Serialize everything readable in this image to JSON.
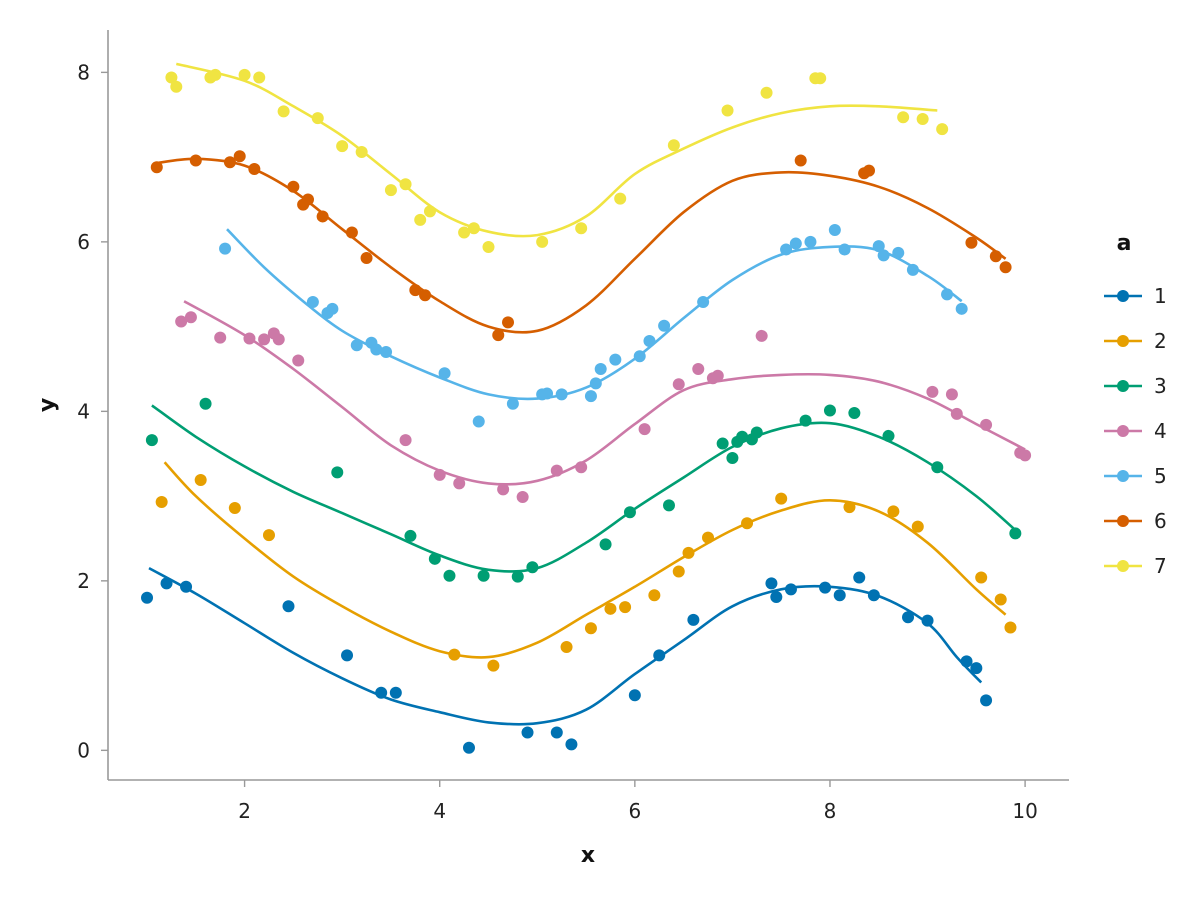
{
  "chart_data": {
    "type": "scatter",
    "title": "",
    "xlabel": "x",
    "ylabel": "y",
    "xlim": [
      0.6,
      10.45
    ],
    "ylim": [
      -0.35,
      8.5
    ],
    "xticks": [
      2,
      4,
      6,
      8,
      10
    ],
    "yticks": [
      0,
      2,
      4,
      6,
      8
    ],
    "grid": false,
    "legend_title": "a",
    "legend_position": "right",
    "series": [
      {
        "name": "1",
        "color": "#0072B2",
        "points": [
          [
            1.0,
            1.8
          ],
          [
            1.2,
            1.97
          ],
          [
            1.4,
            1.93
          ],
          [
            2.45,
            1.7
          ],
          [
            3.05,
            1.12
          ],
          [
            3.4,
            0.68
          ],
          [
            3.55,
            0.68
          ],
          [
            4.3,
            0.03
          ],
          [
            4.9,
            0.21
          ],
          [
            5.2,
            0.21
          ],
          [
            5.35,
            0.07
          ],
          [
            6.0,
            0.65
          ],
          [
            6.25,
            1.12
          ],
          [
            6.6,
            1.54
          ],
          [
            7.4,
            1.97
          ],
          [
            7.45,
            1.81
          ],
          [
            7.6,
            1.9
          ],
          [
            7.95,
            1.92
          ],
          [
            8.1,
            1.83
          ],
          [
            8.3,
            2.04
          ],
          [
            8.45,
            1.83
          ],
          [
            8.8,
            1.57
          ],
          [
            9.0,
            1.53
          ],
          [
            9.4,
            1.05
          ],
          [
            9.5,
            0.97
          ],
          [
            9.6,
            0.59
          ]
        ],
        "smooth": [
          [
            1.02,
            2.15
          ],
          [
            1.5,
            1.85
          ],
          [
            2.0,
            1.5
          ],
          [
            2.5,
            1.15
          ],
          [
            3.0,
            0.85
          ],
          [
            3.5,
            0.6
          ],
          [
            4.0,
            0.45
          ],
          [
            4.5,
            0.33
          ],
          [
            5.0,
            0.32
          ],
          [
            5.5,
            0.48
          ],
          [
            6.0,
            0.9
          ],
          [
            6.5,
            1.3
          ],
          [
            7.0,
            1.7
          ],
          [
            7.5,
            1.9
          ],
          [
            8.0,
            1.93
          ],
          [
            8.5,
            1.82
          ],
          [
            9.0,
            1.5
          ],
          [
            9.3,
            1.1
          ],
          [
            9.55,
            0.8
          ]
        ]
      },
      {
        "name": "2",
        "color": "#E69F00",
        "points": [
          [
            1.15,
            2.93
          ],
          [
            1.55,
            3.19
          ],
          [
            1.9,
            2.86
          ],
          [
            2.25,
            2.54
          ],
          [
            4.15,
            1.13
          ],
          [
            4.55,
            1.0
          ],
          [
            5.3,
            1.22
          ],
          [
            5.55,
            1.44
          ],
          [
            5.75,
            1.67
          ],
          [
            5.9,
            1.69
          ],
          [
            6.2,
            1.83
          ],
          [
            6.45,
            2.11
          ],
          [
            6.55,
            2.33
          ],
          [
            6.75,
            2.51
          ],
          [
            7.15,
            2.68
          ],
          [
            7.5,
            2.97
          ],
          [
            8.2,
            2.87
          ],
          [
            8.65,
            2.82
          ],
          [
            8.9,
            2.64
          ],
          [
            9.55,
            2.04
          ],
          [
            9.75,
            1.78
          ],
          [
            9.85,
            1.45
          ]
        ],
        "smooth": [
          [
            1.18,
            3.4
          ],
          [
            1.5,
            3.0
          ],
          [
            2.0,
            2.5
          ],
          [
            2.5,
            2.05
          ],
          [
            3.0,
            1.7
          ],
          [
            3.5,
            1.4
          ],
          [
            4.0,
            1.17
          ],
          [
            4.5,
            1.1
          ],
          [
            5.0,
            1.27
          ],
          [
            5.5,
            1.6
          ],
          [
            6.0,
            1.93
          ],
          [
            6.5,
            2.28
          ],
          [
            7.0,
            2.6
          ],
          [
            7.5,
            2.83
          ],
          [
            8.0,
            2.95
          ],
          [
            8.5,
            2.82
          ],
          [
            9.0,
            2.45
          ],
          [
            9.5,
            1.9
          ],
          [
            9.8,
            1.6
          ]
        ]
      },
      {
        "name": "3",
        "color": "#009E73",
        "points": [
          [
            1.05,
            3.66
          ],
          [
            1.6,
            4.09
          ],
          [
            2.95,
            3.28
          ],
          [
            3.7,
            2.53
          ],
          [
            3.95,
            2.26
          ],
          [
            4.1,
            2.06
          ],
          [
            4.45,
            2.06
          ],
          [
            4.8,
            2.05
          ],
          [
            4.95,
            2.16
          ],
          [
            5.7,
            2.43
          ],
          [
            5.95,
            2.81
          ],
          [
            6.35,
            2.89
          ],
          [
            6.9,
            3.62
          ],
          [
            7.0,
            3.45
          ],
          [
            7.05,
            3.64
          ],
          [
            7.1,
            3.7
          ],
          [
            7.2,
            3.67
          ],
          [
            7.25,
            3.75
          ],
          [
            7.75,
            3.89
          ],
          [
            8.0,
            4.01
          ],
          [
            8.25,
            3.98
          ],
          [
            8.6,
            3.71
          ],
          [
            9.1,
            3.34
          ],
          [
            9.9,
            2.56
          ]
        ],
        "smooth": [
          [
            1.05,
            4.07
          ],
          [
            1.5,
            3.7
          ],
          [
            2.0,
            3.35
          ],
          [
            2.5,
            3.05
          ],
          [
            3.0,
            2.8
          ],
          [
            3.5,
            2.55
          ],
          [
            4.0,
            2.3
          ],
          [
            4.5,
            2.13
          ],
          [
            5.0,
            2.15
          ],
          [
            5.5,
            2.45
          ],
          [
            6.0,
            2.85
          ],
          [
            6.5,
            3.22
          ],
          [
            7.0,
            3.58
          ],
          [
            7.5,
            3.8
          ],
          [
            8.0,
            3.86
          ],
          [
            8.5,
            3.7
          ],
          [
            9.0,
            3.4
          ],
          [
            9.5,
            3.0
          ],
          [
            9.9,
            2.6
          ]
        ]
      },
      {
        "name": "4",
        "color": "#CC79A7",
        "points": [
          [
            1.35,
            5.06
          ],
          [
            1.45,
            5.11
          ],
          [
            1.75,
            4.87
          ],
          [
            2.05,
            4.86
          ],
          [
            2.2,
            4.85
          ],
          [
            2.3,
            4.92
          ],
          [
            2.35,
            4.85
          ],
          [
            2.55,
            4.6
          ],
          [
            3.65,
            3.66
          ],
          [
            4.0,
            3.25
          ],
          [
            4.2,
            3.15
          ],
          [
            4.65,
            3.08
          ],
          [
            4.85,
            2.99
          ],
          [
            5.2,
            3.3
          ],
          [
            5.45,
            3.34
          ],
          [
            6.1,
            3.79
          ],
          [
            6.45,
            4.32
          ],
          [
            6.65,
            4.5
          ],
          [
            6.8,
            4.39
          ],
          [
            6.85,
            4.42
          ],
          [
            7.3,
            4.89
          ],
          [
            9.05,
            4.23
          ],
          [
            9.25,
            4.2
          ],
          [
            9.3,
            3.97
          ],
          [
            9.6,
            3.84
          ],
          [
            9.95,
            3.51
          ],
          [
            10.0,
            3.48
          ]
        ],
        "smooth": [
          [
            1.38,
            5.3
          ],
          [
            2.0,
            4.9
          ],
          [
            2.5,
            4.5
          ],
          [
            3.0,
            4.05
          ],
          [
            3.5,
            3.6
          ],
          [
            4.0,
            3.3
          ],
          [
            4.5,
            3.15
          ],
          [
            5.0,
            3.18
          ],
          [
            5.5,
            3.42
          ],
          [
            6.0,
            3.85
          ],
          [
            6.5,
            4.25
          ],
          [
            7.0,
            4.38
          ],
          [
            7.5,
            4.43
          ],
          [
            8.0,
            4.43
          ],
          [
            8.5,
            4.35
          ],
          [
            9.0,
            4.15
          ],
          [
            9.5,
            3.85
          ],
          [
            10.0,
            3.55
          ]
        ]
      },
      {
        "name": "5",
        "color": "#56B4E9",
        "points": [
          [
            1.8,
            5.92
          ],
          [
            2.7,
            5.29
          ],
          [
            2.85,
            5.16
          ],
          [
            2.9,
            5.21
          ],
          [
            3.15,
            4.78
          ],
          [
            3.3,
            4.81
          ],
          [
            3.35,
            4.73
          ],
          [
            3.45,
            4.7
          ],
          [
            4.05,
            4.45
          ],
          [
            4.4,
            3.88
          ],
          [
            4.75,
            4.09
          ],
          [
            5.05,
            4.2
          ],
          [
            5.1,
            4.21
          ],
          [
            5.25,
            4.2
          ],
          [
            5.55,
            4.18
          ],
          [
            5.6,
            4.33
          ],
          [
            5.65,
            4.5
          ],
          [
            5.8,
            4.61
          ],
          [
            6.05,
            4.65
          ],
          [
            6.15,
            4.83
          ],
          [
            6.3,
            5.01
          ],
          [
            6.7,
            5.29
          ],
          [
            7.55,
            5.91
          ],
          [
            7.65,
            5.98
          ],
          [
            7.8,
            6.0
          ],
          [
            8.05,
            6.14
          ],
          [
            8.15,
            5.91
          ],
          [
            8.5,
            5.95
          ],
          [
            8.55,
            5.84
          ],
          [
            8.7,
            5.87
          ],
          [
            8.85,
            5.67
          ],
          [
            9.2,
            5.38
          ],
          [
            9.35,
            5.21
          ]
        ],
        "smooth": [
          [
            1.82,
            6.15
          ],
          [
            2.2,
            5.7
          ],
          [
            2.6,
            5.3
          ],
          [
            3.0,
            4.95
          ],
          [
            3.5,
            4.65
          ],
          [
            4.0,
            4.4
          ],
          [
            4.5,
            4.2
          ],
          [
            5.0,
            4.15
          ],
          [
            5.5,
            4.28
          ],
          [
            6.0,
            4.62
          ],
          [
            6.5,
            5.1
          ],
          [
            7.0,
            5.55
          ],
          [
            7.5,
            5.85
          ],
          [
            8.0,
            5.94
          ],
          [
            8.5,
            5.9
          ],
          [
            9.0,
            5.6
          ],
          [
            9.35,
            5.3
          ]
        ]
      },
      {
        "name": "6",
        "color": "#D55E00",
        "points": [
          [
            1.1,
            6.88
          ],
          [
            1.5,
            6.96
          ],
          [
            1.85,
            6.94
          ],
          [
            1.95,
            7.01
          ],
          [
            2.1,
            6.86
          ],
          [
            2.5,
            6.65
          ],
          [
            2.6,
            6.44
          ],
          [
            2.65,
            6.5
          ],
          [
            2.8,
            6.3
          ],
          [
            3.1,
            6.11
          ],
          [
            3.25,
            5.81
          ],
          [
            3.75,
            5.43
          ],
          [
            3.85,
            5.37
          ],
          [
            4.6,
            4.9
          ],
          [
            4.7,
            5.05
          ],
          [
            7.7,
            6.96
          ],
          [
            8.35,
            6.81
          ],
          [
            8.4,
            6.84
          ],
          [
            9.45,
            5.99
          ],
          [
            9.7,
            5.83
          ],
          [
            9.8,
            5.7
          ]
        ],
        "smooth": [
          [
            1.1,
            6.93
          ],
          [
            1.5,
            6.98
          ],
          [
            2.0,
            6.9
          ],
          [
            2.5,
            6.6
          ],
          [
            3.0,
            6.15
          ],
          [
            3.5,
            5.7
          ],
          [
            4.0,
            5.3
          ],
          [
            4.5,
            5.0
          ],
          [
            5.0,
            4.95
          ],
          [
            5.5,
            5.25
          ],
          [
            6.0,
            5.8
          ],
          [
            6.5,
            6.35
          ],
          [
            7.0,
            6.72
          ],
          [
            7.5,
            6.82
          ],
          [
            8.0,
            6.78
          ],
          [
            8.5,
            6.65
          ],
          [
            9.0,
            6.4
          ],
          [
            9.5,
            6.05
          ],
          [
            9.8,
            5.8
          ]
        ]
      },
      {
        "name": "7",
        "color": "#F0E442",
        "points": [
          [
            1.25,
            7.94
          ],
          [
            1.3,
            7.83
          ],
          [
            1.65,
            7.94
          ],
          [
            1.7,
            7.97
          ],
          [
            2.0,
            7.97
          ],
          [
            2.15,
            7.94
          ],
          [
            2.4,
            7.54
          ],
          [
            2.75,
            7.46
          ],
          [
            3.0,
            7.13
          ],
          [
            3.2,
            7.06
          ],
          [
            3.5,
            6.61
          ],
          [
            3.65,
            6.68
          ],
          [
            3.8,
            6.26
          ],
          [
            3.9,
            6.36
          ],
          [
            4.25,
            6.11
          ],
          [
            4.35,
            6.16
          ],
          [
            4.5,
            5.94
          ],
          [
            5.05,
            6.0
          ],
          [
            5.45,
            6.16
          ],
          [
            5.85,
            6.51
          ],
          [
            6.4,
            7.14
          ],
          [
            6.95,
            7.55
          ],
          [
            7.35,
            7.76
          ],
          [
            7.85,
            7.93
          ],
          [
            7.9,
            7.93
          ],
          [
            8.75,
            7.47
          ],
          [
            8.95,
            7.45
          ],
          [
            9.15,
            7.33
          ]
        ],
        "smooth": [
          [
            1.3,
            8.1
          ],
          [
            2.0,
            7.9
          ],
          [
            2.5,
            7.6
          ],
          [
            3.0,
            7.25
          ],
          [
            3.5,
            6.8
          ],
          [
            4.0,
            6.35
          ],
          [
            4.5,
            6.12
          ],
          [
            5.0,
            6.08
          ],
          [
            5.5,
            6.3
          ],
          [
            6.0,
            6.8
          ],
          [
            6.5,
            7.1
          ],
          [
            7.0,
            7.35
          ],
          [
            7.5,
            7.52
          ],
          [
            8.0,
            7.6
          ],
          [
            8.5,
            7.6
          ],
          [
            9.1,
            7.55
          ]
        ]
      }
    ]
  }
}
